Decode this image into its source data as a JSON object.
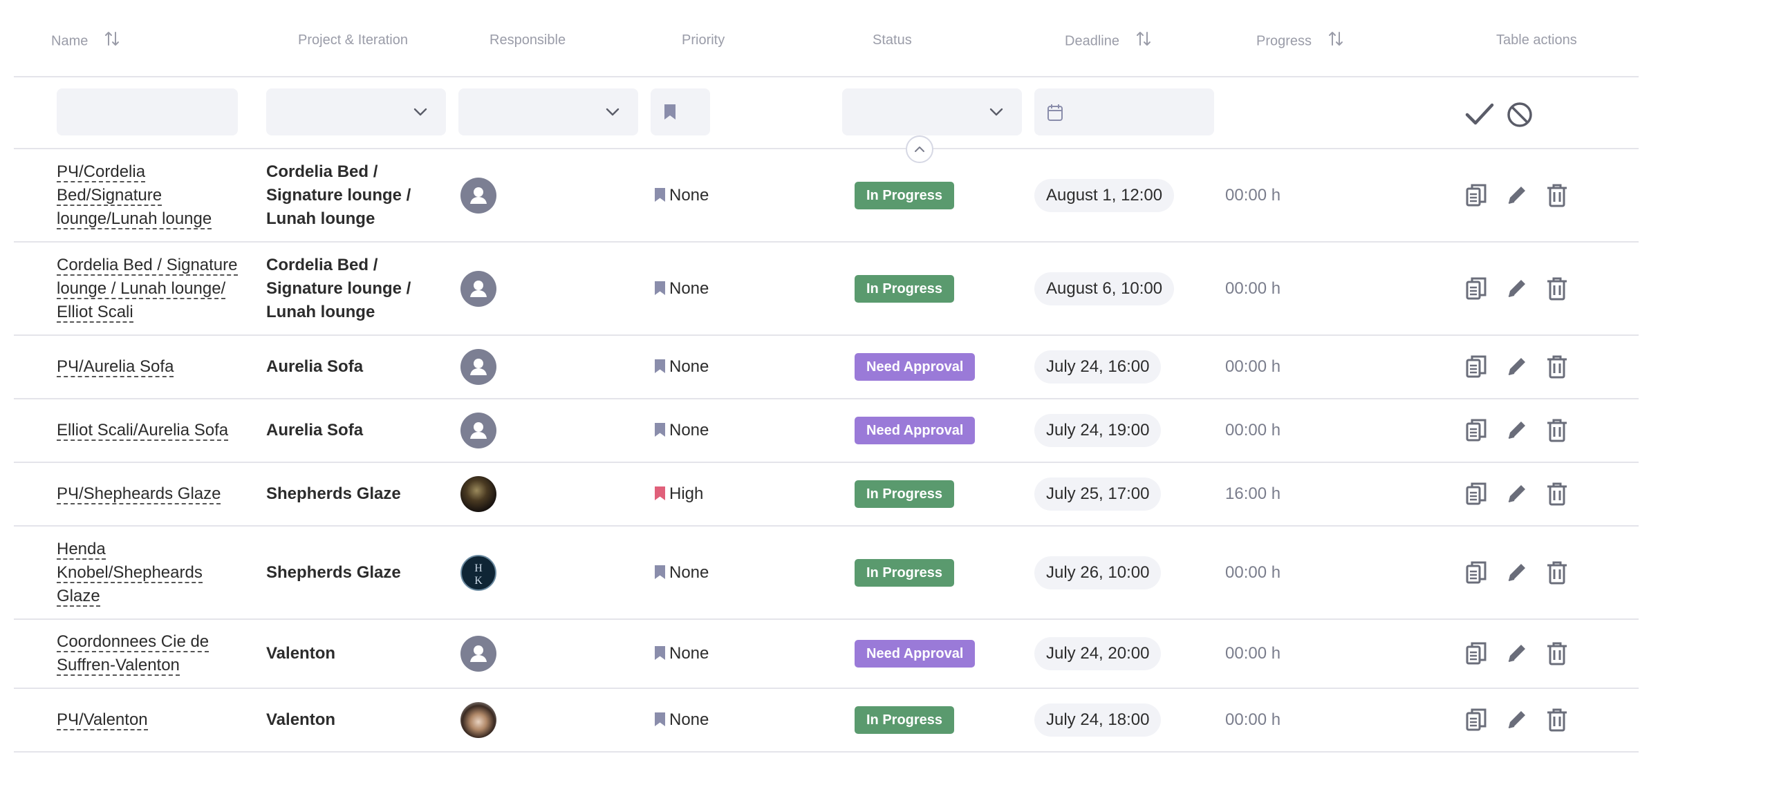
{
  "headers": {
    "name": "Name",
    "project": "Project & Iteration",
    "responsible": "Responsible",
    "priority": "Priority",
    "status": "Status",
    "deadline": "Deadline",
    "progress": "Progress",
    "actions": "Table actions"
  },
  "colors": {
    "in_progress": "#5a9a6e",
    "need_approval": "#9a7ad8",
    "priority_none": "#8a8dab",
    "priority_high": "#e0607a"
  },
  "icons": {
    "sort": "sort-arrows-icon",
    "chevron": "chevron-down-icon",
    "bookmark": "bookmark-icon",
    "calendar": "calendar-icon",
    "apply": "checkmark-icon",
    "cancel": "prohibited-icon",
    "collapse": "chevron-up-icon",
    "copy": "copy-icon",
    "edit": "pencil-icon",
    "delete": "trash-icon"
  },
  "rows": [
    {
      "name_lines": [
        "РЧ/Cordelia",
        "Bed/Signature",
        "lounge/Lunah lounge"
      ],
      "project_lines": [
        "Cordelia Bed /",
        "Signature lounge /",
        "Lunah lounge"
      ],
      "avatar": "default",
      "priority": "None",
      "status": "In Progress",
      "deadline": "August 1, 12:00",
      "progress": "00:00 h"
    },
    {
      "name_lines": [
        "Cordelia Bed / Signature",
        "lounge / Lunah lounge/",
        "Elliot Scali"
      ],
      "project_lines": [
        "Cordelia Bed /",
        "Signature lounge /",
        "Lunah lounge"
      ],
      "avatar": "default",
      "priority": "None",
      "status": "In Progress",
      "deadline": "August 6, 10:00",
      "progress": "00:00 h"
    },
    {
      "name_lines": [
        "РЧ/Aurelia Sofa"
      ],
      "project_lines": [
        "Aurelia Sofa"
      ],
      "avatar": "default",
      "priority": "None",
      "status": "Need Approval",
      "deadline": "July 24, 16:00",
      "progress": "00:00 h"
    },
    {
      "name_lines": [
        "Elliot Scali/Aurelia Sofa"
      ],
      "project_lines": [
        "Aurelia Sofa"
      ],
      "avatar": "default",
      "priority": "None",
      "status": "Need Approval",
      "deadline": "July 24, 19:00",
      "progress": "00:00 h"
    },
    {
      "name_lines": [
        "РЧ/Shepheards Glaze"
      ],
      "project_lines": [
        "Shepherds Glaze"
      ],
      "avatar": "photo",
      "priority": "High",
      "status": "In Progress",
      "deadline": "July 25, 17:00",
      "progress": "16:00 h"
    },
    {
      "name_lines": [
        "Henda",
        "Knobel/Shepheards",
        "Glaze"
      ],
      "project_lines": [
        "Shepherds Glaze"
      ],
      "avatar": "photo",
      "priority": "None",
      "status": "In Progress",
      "deadline": "July 26, 10:00",
      "progress": "00:00 h"
    },
    {
      "name_lines": [
        "Coordonnees Cie de",
        "Suffren-Valenton"
      ],
      "project_lines": [
        "Valenton"
      ],
      "avatar": "default",
      "priority": "None",
      "status": "Need Approval",
      "deadline": "July 24, 20:00",
      "progress": "00:00 h"
    },
    {
      "name_lines": [
        "РЧ/Valenton"
      ],
      "project_lines": [
        "Valenton"
      ],
      "avatar": "photo",
      "priority": "None",
      "status": "In Progress",
      "deadline": "July 24, 18:00",
      "progress": "00:00 h"
    }
  ]
}
